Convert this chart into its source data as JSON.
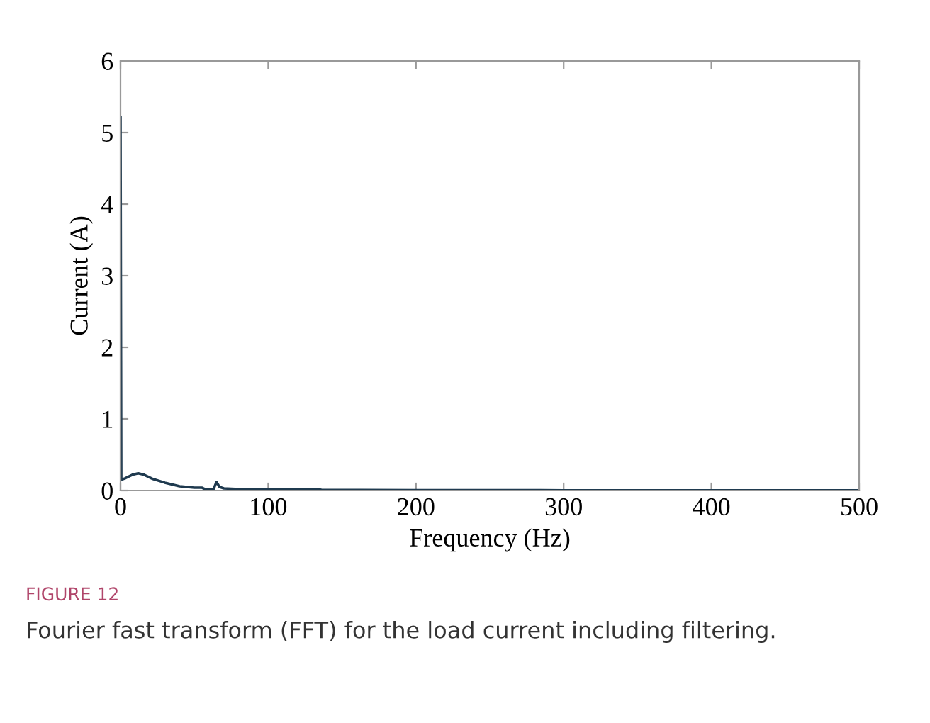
{
  "chart_data": {
    "type": "line",
    "xlabel": "Frequency (Hz)",
    "ylabel": "Current (A)",
    "x": [
      0,
      0.5,
      3,
      8,
      12,
      16,
      22,
      30,
      40,
      50,
      55,
      57,
      63,
      65,
      67,
      70,
      80,
      100,
      130,
      133,
      136,
      200,
      300,
      400,
      500
    ],
    "series": [
      {
        "color": "#1f3a4f",
        "values": [
          5.22,
          0.15,
          0.17,
          0.22,
          0.24,
          0.22,
          0.16,
          0.11,
          0.06,
          0.04,
          0.04,
          0.02,
          0.02,
          0.12,
          0.05,
          0.03,
          0.02,
          0.02,
          0.015,
          0.02,
          0.01,
          0.005,
          0.003,
          0.002,
          0.002
        ]
      }
    ],
    "xlim": [
      0,
      500
    ],
    "ylim": [
      0,
      6
    ],
    "xticks": [
      0,
      100,
      200,
      300,
      400,
      500
    ],
    "yticks": [
      0,
      1,
      2,
      3,
      4,
      5,
      6
    ],
    "grid": false,
    "legend": false,
    "marker": "none",
    "line_style": "solid",
    "annotations": [
      "FIGURE 12",
      "Fourier fast transform (FFT) for the load current including filtering."
    ]
  }
}
